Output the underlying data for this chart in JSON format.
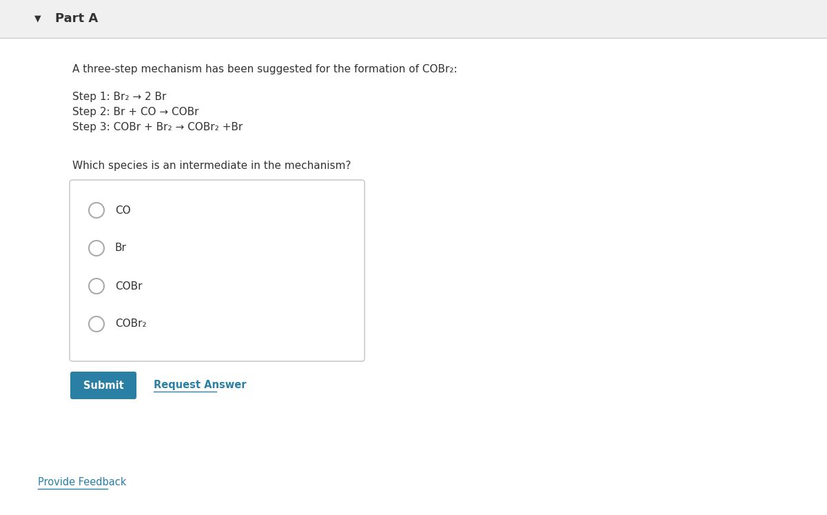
{
  "background_color": "#ffffff",
  "header_bg": "#f0f0f0",
  "header_text": "Part A",
  "header_font_size": 13,
  "intro_text": "A three-step mechanism has been suggested for the formation of COBr₂:",
  "steps": [
    "Step 1: Br₂ → 2 Br",
    "Step 2: Br + CO → COBr",
    "Step 3: COBr + Br₂ → COBr₂ +Br"
  ],
  "question": "Which species is an intermediate in the mechanism?",
  "options": [
    "CO",
    "Br",
    "COBr",
    "COBr₂"
  ],
  "submit_text": "Submit",
  "submit_bg": "#2a7fa5",
  "submit_text_color": "#ffffff",
  "request_answer_text": "Request Answer",
  "request_answer_color": "#2a7fa5",
  "provide_feedback_text": "Provide Feedback",
  "provide_feedback_color": "#2a7fa5",
  "triangle_color": "#333333",
  "box_border_color": "#cccccc",
  "text_color": "#333333",
  "font_size": 11,
  "option_font_size": 11
}
